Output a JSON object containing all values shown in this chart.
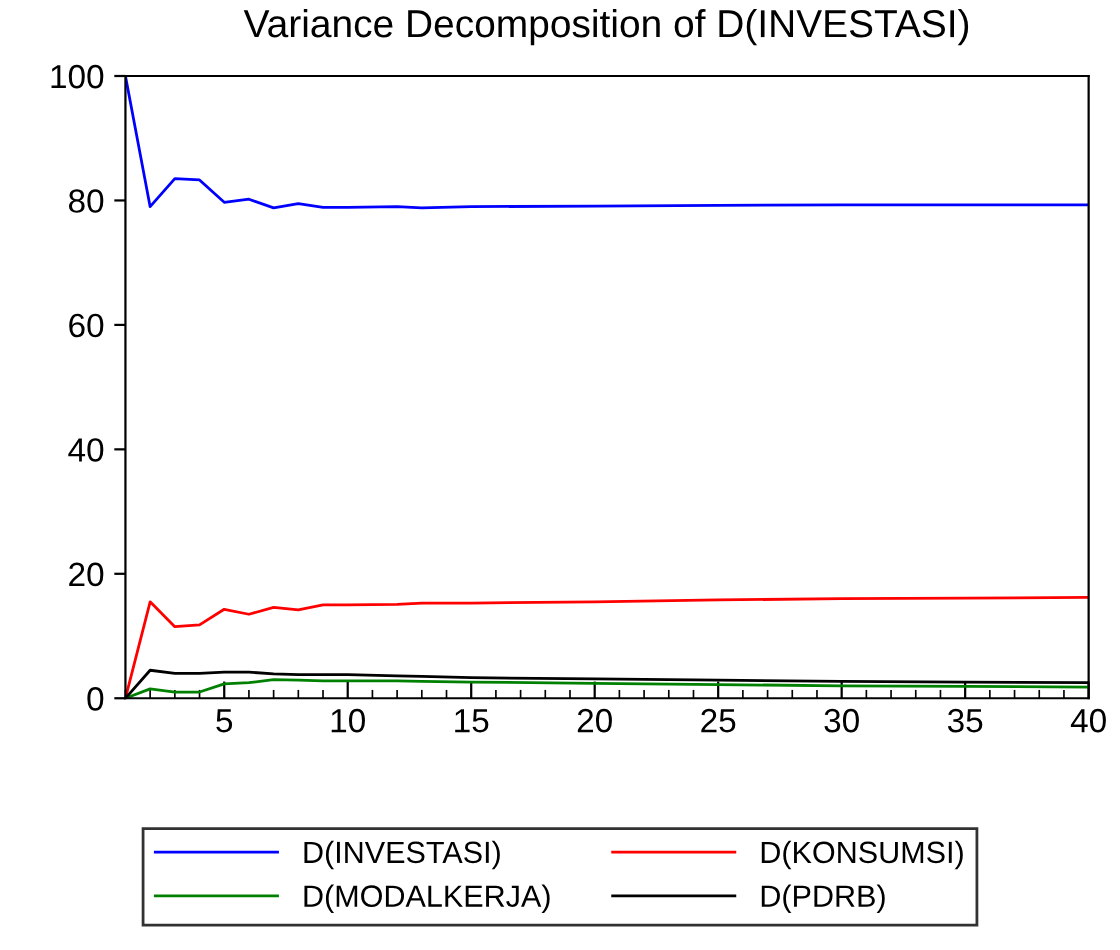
{
  "chart_data": {
    "type": "line",
    "title": "Variance Decomposition of D(INVESTASI)",
    "x": [
      1,
      2,
      3,
      4,
      5,
      6,
      7,
      8,
      9,
      10,
      12,
      13,
      15,
      20,
      25,
      30,
      35,
      40
    ],
    "series": [
      {
        "name": "D(INVESTASI)",
        "color": "#0000ff",
        "values": [
          100,
          79,
          83.5,
          83.3,
          79.7,
          80.2,
          78.8,
          79.5,
          78.9,
          78.9,
          79.0,
          78.8,
          79.0,
          79.1,
          79.2,
          79.3,
          79.3,
          79.3
        ]
      },
      {
        "name": "D(KONSUMSI)",
        "color": "#ff0000",
        "values": [
          0,
          15.5,
          11.5,
          11.8,
          14.3,
          13.5,
          14.6,
          14.2,
          15.0,
          15.0,
          15.1,
          15.3,
          15.3,
          15.5,
          15.8,
          16.0,
          16.1,
          16.2
        ]
      },
      {
        "name": "D(MODALKERJA)",
        "color": "#008000",
        "values": [
          0,
          1.5,
          1.0,
          1.0,
          2.3,
          2.5,
          3.0,
          2.9,
          2.8,
          2.8,
          2.8,
          2.7,
          2.6,
          2.4,
          2.2,
          2.0,
          1.9,
          1.8
        ]
      },
      {
        "name": "D(PDRB)",
        "color": "#000000",
        "values": [
          0,
          4.5,
          4.0,
          4.0,
          4.2,
          4.2,
          3.9,
          3.8,
          3.8,
          3.8,
          3.6,
          3.5,
          3.3,
          3.1,
          2.9,
          2.7,
          2.6,
          2.5
        ]
      }
    ],
    "xlim": [
      1,
      40
    ],
    "xticks": [
      5,
      10,
      15,
      20,
      25,
      30,
      35,
      40
    ],
    "ylim": [
      0,
      100
    ],
    "yticks": [
      0,
      20,
      40,
      60,
      80,
      100
    ],
    "grid": false,
    "legend": "bottom",
    "marker": "none",
    "line_style": "solid"
  }
}
